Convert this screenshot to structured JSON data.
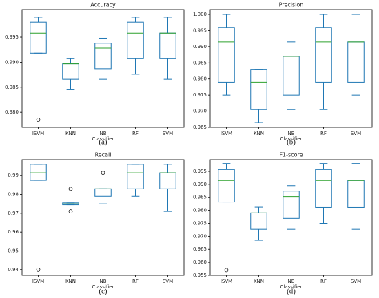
{
  "chart_data": [
    {
      "type": "box",
      "title": "Accuracy",
      "x_label": "Classifier",
      "panel_label": "(a)",
      "categories": [
        "ISVM",
        "KNN",
        "NB",
        "RF",
        "SVM"
      ],
      "color": "#1f77b4",
      "median_color": "#2ca02c",
      "ylim": [
        0.977,
        1.0005
      ],
      "yticks": [
        {
          "value": 0.98,
          "label": "0.980"
        },
        0.985,
        {
          "value": 0.99,
          "label": "0.990"
        },
        0.995
      ],
      "boxes": [
        {
          "min": 0.9918,
          "q1": 0.9918,
          "median": 0.9958,
          "q3": 0.998,
          "max": 0.999,
          "outliers": [
            0.9785
          ]
        },
        {
          "min": 0.9845,
          "q1": 0.9866,
          "median": 0.9897,
          "q3": 0.9897,
          "max": 0.9907,
          "outliers": []
        },
        {
          "min": 0.9866,
          "q1": 0.9887,
          "median": 0.9928,
          "q3": 0.9938,
          "max": 0.9948,
          "outliers": []
        },
        {
          "min": 0.9876,
          "q1": 0.9907,
          "median": 0.9958,
          "q3": 0.998,
          "max": 0.999,
          "outliers": []
        },
        {
          "min": 0.9866,
          "q1": 0.9907,
          "median": 0.9958,
          "q3": 0.9958,
          "max": 0.999,
          "outliers": []
        }
      ]
    },
    {
      "type": "box",
      "title": "Precision",
      "x_label": "Classifier",
      "panel_label": "(b)",
      "categories": [
        "ISVM",
        "KNN",
        "NB",
        "RF",
        "SVM"
      ],
      "color": "#1f77b4",
      "median_color": "#2ca02c",
      "ylim": [
        0.965,
        1.0015
      ],
      "yticks": [
        0.965,
        {
          "value": 0.97,
          "label": "0.970"
        },
        0.975,
        {
          "value": 0.98,
          "label": "0.980"
        },
        0.985,
        {
          "value": 0.99,
          "label": "0.990"
        },
        0.995,
        {
          "value": 1,
          "label": "1.000"
        }
      ],
      "boxes": [
        {
          "min": 0.975,
          "q1": 0.979,
          "median": 0.9915,
          "q3": 0.996,
          "max": 1.0,
          "outliers": []
        },
        {
          "min": 0.9665,
          "q1": 0.9705,
          "median": 0.979,
          "q3": 0.983,
          "max": 0.983,
          "outliers": []
        },
        {
          "min": 0.9705,
          "q1": 0.975,
          "median": 0.987,
          "q3": 0.987,
          "max": 0.9915,
          "outliers": []
        },
        {
          "min": 0.9705,
          "q1": 0.979,
          "median": 0.9915,
          "q3": 0.996,
          "max": 1.0,
          "outliers": []
        },
        {
          "min": 0.975,
          "q1": 0.979,
          "median": 0.9915,
          "q3": 0.9915,
          "max": 1.0,
          "outliers": []
        }
      ]
    },
    {
      "type": "box",
      "title": "Recall",
      "x_label": "Classifier",
      "panel_label": "(c)",
      "categories": [
        "ISVM",
        "KNN",
        "NB",
        "RF",
        "SVM"
      ],
      "color": "#1f77b4",
      "median_color": "#2ca02c",
      "ylim": [
        0.937,
        0.9985
      ],
      "yticks": [
        0.94,
        0.95,
        0.96,
        0.97,
        0.98,
        0.99
      ],
      "boxes": [
        {
          "min": 0.9875,
          "q1": 0.9875,
          "median": 0.9915,
          "q3": 0.996,
          "max": 0.996,
          "outliers": [
            0.94
          ]
        },
        {
          "min": 0.9745,
          "q1": 0.9745,
          "median": 0.975,
          "q3": 0.9755,
          "max": 0.9755,
          "outliers": [
            0.983,
            0.971
          ]
        },
        {
          "min": 0.975,
          "q1": 0.979,
          "median": 0.983,
          "q3": 0.983,
          "max": 0.983,
          "outliers": [
            0.9915
          ]
        },
        {
          "min": 0.979,
          "q1": 0.983,
          "median": 0.9915,
          "q3": 0.996,
          "max": 0.996,
          "outliers": []
        },
        {
          "min": 0.971,
          "q1": 0.983,
          "median": 0.9915,
          "q3": 0.9915,
          "max": 0.996,
          "outliers": []
        }
      ]
    },
    {
      "type": "box",
      "title": "F1-score",
      "x_label": "Classifier",
      "panel_label": "(d)",
      "categories": [
        "ISVM",
        "KNN",
        "NB",
        "RF",
        "SVM"
      ],
      "color": "#1f77b4",
      "median_color": "#2ca02c",
      "ylim": [
        0.955,
        0.9995
      ],
      "yticks": [
        0.955,
        {
          "value": 0.96,
          "label": "0.960"
        },
        0.965,
        {
          "value": 0.97,
          "label": "0.970"
        },
        0.975,
        {
          "value": 0.98,
          "label": "0.980"
        },
        0.985,
        {
          "value": 0.99,
          "label": "0.990"
        },
        0.995
      ],
      "boxes": [
        {
          "min": 0.9832,
          "q1": 0.9832,
          "median": 0.9915,
          "q3": 0.9957,
          "max": 0.998,
          "outliers": [
            0.957
          ]
        },
        {
          "min": 0.9685,
          "q1": 0.9727,
          "median": 0.979,
          "q3": 0.979,
          "max": 0.9812,
          "outliers": []
        },
        {
          "min": 0.9727,
          "q1": 0.9769,
          "median": 0.9853,
          "q3": 0.9874,
          "max": 0.9895,
          "outliers": []
        },
        {
          "min": 0.975,
          "q1": 0.9811,
          "median": 0.9915,
          "q3": 0.9957,
          "max": 0.998,
          "outliers": []
        },
        {
          "min": 0.9727,
          "q1": 0.9811,
          "median": 0.9915,
          "q3": 0.9915,
          "max": 0.998,
          "outliers": []
        }
      ]
    }
  ]
}
